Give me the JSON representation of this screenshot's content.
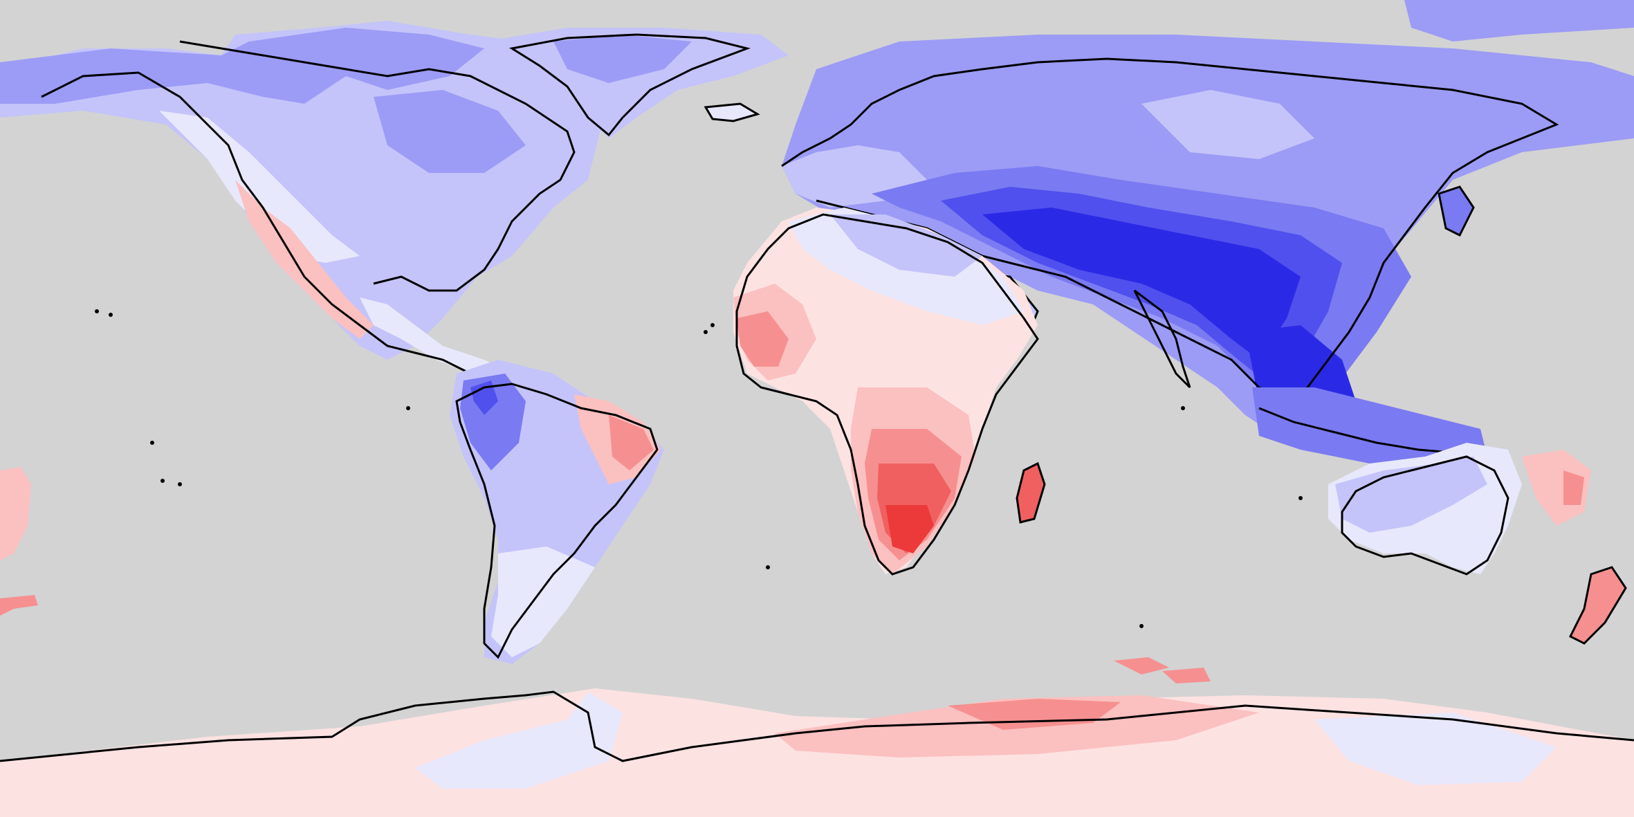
{
  "map": {
    "projection": "equirectangular",
    "ocean_color": "#d3d3d3",
    "coastline_color": "#000000",
    "palette": {
      "blue_1": "#e8e8fc",
      "blue_2": "#c4c4fa",
      "blue_3": "#9c9cf6",
      "blue_4": "#7a7af2",
      "blue_5": "#5050ee",
      "blue_6": "#2a2ae6",
      "red_1": "#fde2e2",
      "red_2": "#fbc0c0",
      "red_3": "#f69090",
      "red_4": "#f06060",
      "red_5": "#ec3a3a"
    }
  }
}
